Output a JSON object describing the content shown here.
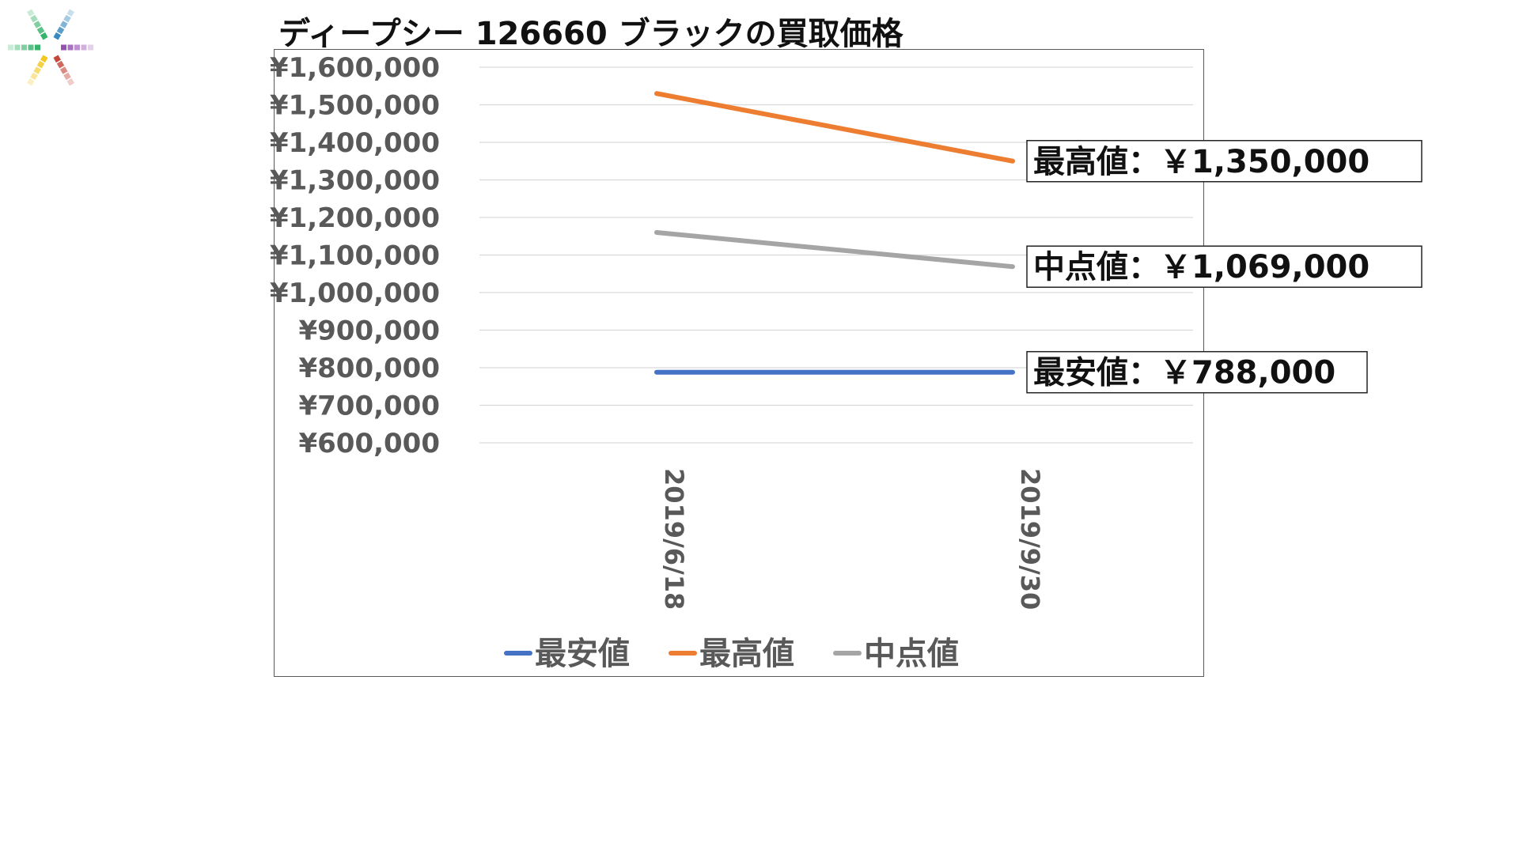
{
  "chart_data": {
    "type": "line",
    "title": "ディープシー 126660 ブラックの買取価格",
    "categories": [
      "2019/6/18",
      "2019/9/30"
    ],
    "series": [
      {
        "name": "最安値",
        "values": [
          788000,
          788000
        ],
        "color": "#4472C4"
      },
      {
        "name": "最高値",
        "values": [
          1530000,
          1350000
        ],
        "color": "#ED7D31"
      },
      {
        "name": "中点値",
        "values": [
          1160000,
          1069000
        ],
        "color": "#A5A5A5"
      }
    ],
    "ylim": [
      600000,
      1600000
    ],
    "y_ticks": [
      {
        "value": 1600000,
        "label": "¥1,600,000"
      },
      {
        "value": 1500000,
        "label": "¥1,500,000"
      },
      {
        "value": 1400000,
        "label": "¥1,400,000"
      },
      {
        "value": 1300000,
        "label": "¥1,300,000"
      },
      {
        "value": 1200000,
        "label": "¥1,200,000"
      },
      {
        "value": 1100000,
        "label": "¥1,100,000"
      },
      {
        "value": 1000000,
        "label": "¥1,000,000"
      },
      {
        "value": 900000,
        "label": "¥900,000"
      },
      {
        "value": 800000,
        "label": "¥800,000"
      },
      {
        "value": 700000,
        "label": "¥700,000"
      },
      {
        "value": 600000,
        "label": "¥600,000"
      }
    ],
    "grid": true,
    "grid_color": "#D9D9D9",
    "legend_position": "bottom",
    "annotations": [
      {
        "series": "最高値",
        "text": "最高値：￥1,350,000"
      },
      {
        "series": "中点値",
        "text": "中点値：￥1,069,000"
      },
      {
        "series": "最安値",
        "text": "最安値：￥788,000"
      }
    ]
  },
  "logo": {
    "icon": "color-burst-logo-icon",
    "colors": [
      "#c0392b",
      "#e67e22",
      "#f1c40f",
      "#27ae60",
      "#2980b9",
      "#8e44ad"
    ]
  }
}
